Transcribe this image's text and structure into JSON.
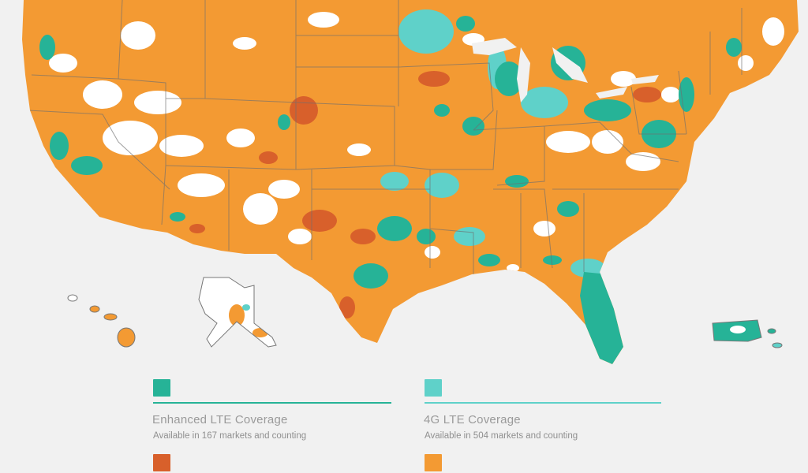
{
  "colors": {
    "enhanced_lte": "#26b397",
    "lte_4g": "#5fd1c9",
    "coverage_3g": "#d8602b",
    "coverage_orange": "#f39a33",
    "no_coverage": "#ffffff",
    "state_border": "#6f6f6f",
    "background": "#f1f1f1"
  },
  "legend": {
    "enhanced": {
      "title": "Enhanced LTE Coverage",
      "subtitle": "Available in 167 markets and counting"
    },
    "lte4g": {
      "title": "4G LTE Coverage",
      "subtitle": "Available in 504 markets and counting"
    }
  }
}
